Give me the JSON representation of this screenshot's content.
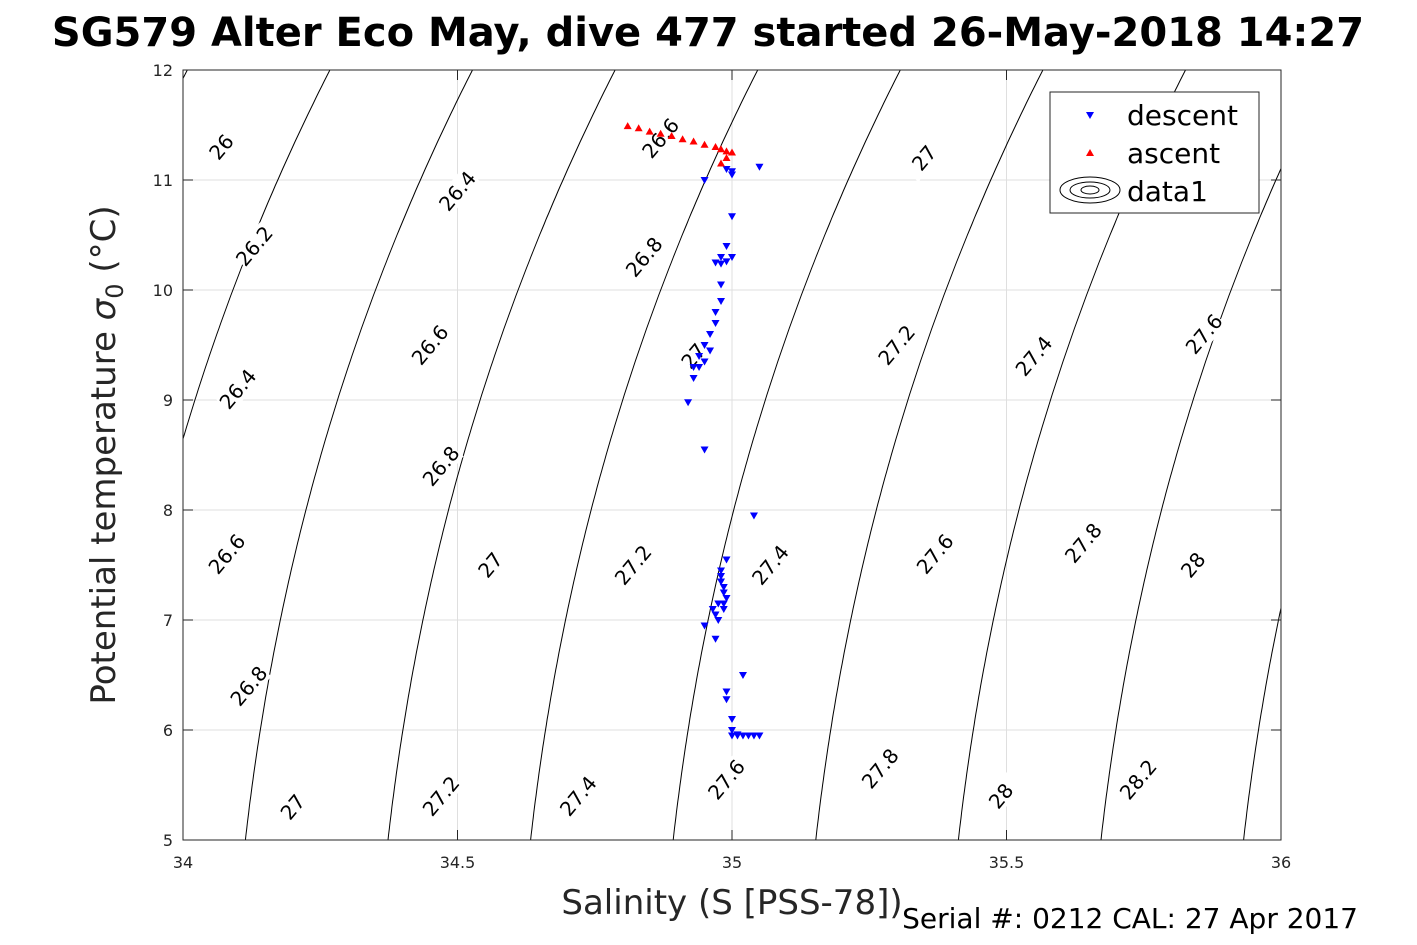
{
  "chart_data": {
    "type": "scatter",
    "title": "SG579 Alter Eco May, dive 477 started 26-May-2018 14:27",
    "xlabel": "Salinity (S [PSS-78])",
    "ylabel": "Potential temperature σ₀ (°C)",
    "ylabel_main": "Potential temperature ",
    "ylabel_sigma": "σ",
    "ylabel_sub": "0",
    "ylabel_unit": " (°C)",
    "xlim": [
      34,
      36
    ],
    "ylim": [
      5,
      12
    ],
    "xticks": [
      34,
      34.5,
      35,
      35.5,
      36
    ],
    "xtick_labels": [
      "34",
      "34.5",
      "35",
      "35.5",
      "36"
    ],
    "yticks": [
      5,
      6,
      7,
      8,
      9,
      10,
      11,
      12
    ],
    "ytick_labels": [
      "5",
      "6",
      "7",
      "8",
      "9",
      "10",
      "11",
      "12"
    ],
    "grid": true,
    "legend_position": "top-right",
    "footer": "Serial #: 0212  CAL: 27 Apr 2017",
    "series": [
      {
        "name": "descent",
        "marker": "triangle-down",
        "color": "#0000ff",
        "x": [
          35.05,
          35.0,
          34.95,
          34.99,
          35.0,
          35.0,
          34.99,
          34.98,
          34.97,
          34.98,
          34.99,
          35.0,
          34.98,
          34.97,
          34.98,
          34.96,
          34.97,
          34.95,
          34.96,
          34.95,
          34.94,
          34.93,
          34.94,
          34.92,
          34.93,
          34.95,
          35.04,
          34.99,
          34.98,
          34.98,
          34.98,
          34.985,
          34.985,
          34.99,
          34.985,
          34.985,
          34.975,
          34.965,
          34.97,
          34.975,
          34.95,
          34.97,
          34.99,
          35.02,
          34.99,
          35.0,
          35.0,
          35.01,
          35.0,
          35.01,
          35.02,
          35.03,
          35.04,
          35.05
        ],
        "y": [
          11.12,
          11.08,
          11.0,
          11.1,
          11.05,
          10.67,
          10.4,
          10.3,
          10.25,
          10.24,
          10.26,
          10.3,
          10.05,
          9.8,
          9.9,
          9.6,
          9.7,
          9.5,
          9.45,
          9.35,
          9.3,
          9.2,
          9.4,
          8.98,
          9.3,
          8.55,
          7.95,
          7.55,
          7.45,
          7.4,
          7.35,
          7.3,
          7.25,
          7.2,
          7.15,
          7.1,
          7.15,
          7.1,
          7.05,
          7.0,
          6.95,
          6.83,
          6.35,
          6.5,
          6.28,
          6.1,
          6.0,
          5.96,
          5.95,
          5.95,
          5.95,
          5.95,
          5.95,
          5.95
        ]
      },
      {
        "name": "ascent",
        "marker": "triangle-up",
        "color": "#ff0000",
        "x": [
          34.81,
          34.83,
          34.85,
          34.87,
          34.89,
          34.91,
          34.93,
          34.95,
          34.97,
          34.98,
          34.99,
          35.0,
          34.99,
          34.98
        ],
        "y": [
          11.49,
          11.47,
          11.44,
          11.42,
          11.4,
          11.37,
          11.35,
          11.32,
          11.3,
          11.28,
          11.26,
          11.25,
          11.2,
          11.15
        ]
      },
      {
        "name": "data1",
        "type": "contour",
        "color": "#000000",
        "levels": [
          26,
          26.2,
          26.4,
          26.6,
          26.8,
          27,
          27.2,
          27.4,
          27.6,
          27.8,
          28,
          28.2
        ],
        "contour_labels": [
          {
            "text": "26",
            "s": 34.07,
            "t": 11.3
          },
          {
            "text": "26.2",
            "s": 34.13,
            "t": 10.4
          },
          {
            "text": "26.4",
            "s": 34.5,
            "t": 10.9
          },
          {
            "text": "26.4",
            "s": 34.1,
            "t": 9.1
          },
          {
            "text": "26.6",
            "s": 34.87,
            "t": 11.38
          },
          {
            "text": "26.6",
            "s": 34.45,
            "t": 9.5
          },
          {
            "text": "26.6",
            "s": 34.08,
            "t": 7.6
          },
          {
            "text": "26.8",
            "s": 34.84,
            "t": 10.3
          },
          {
            "text": "26.8",
            "s": 34.47,
            "t": 8.4
          },
          {
            "text": "26.8",
            "s": 34.12,
            "t": 6.4
          },
          {
            "text": "27",
            "s": 35.35,
            "t": 11.2
          },
          {
            "text": "27",
            "s": 34.93,
            "t": 9.4
          },
          {
            "text": "27",
            "s": 34.56,
            "t": 7.5
          },
          {
            "text": "27",
            "s": 34.2,
            "t": 5.3
          },
          {
            "text": "27.2",
            "s": 35.3,
            "t": 9.5
          },
          {
            "text": "27.2",
            "s": 34.82,
            "t": 7.5
          },
          {
            "text": "27.2",
            "s": 34.47,
            "t": 5.4
          },
          {
            "text": "27.4",
            "s": 35.55,
            "t": 9.4
          },
          {
            "text": "27.4",
            "s": 35.07,
            "t": 7.5
          },
          {
            "text": "27.4",
            "s": 34.72,
            "t": 5.4
          },
          {
            "text": "27.6",
            "s": 35.86,
            "t": 9.6
          },
          {
            "text": "27.6",
            "s": 35.37,
            "t": 7.6
          },
          {
            "text": "27.6",
            "s": 34.99,
            "t": 5.55
          },
          {
            "text": "27.8",
            "s": 35.64,
            "t": 7.7
          },
          {
            "text": "27.8",
            "s": 35.27,
            "t": 5.65
          },
          {
            "text": "28",
            "s": 35.84,
            "t": 7.5
          },
          {
            "text": "28",
            "s": 35.49,
            "t": 5.4
          },
          {
            "text": "28.2",
            "s": 35.74,
            "t": 5.55
          }
        ]
      }
    ]
  }
}
